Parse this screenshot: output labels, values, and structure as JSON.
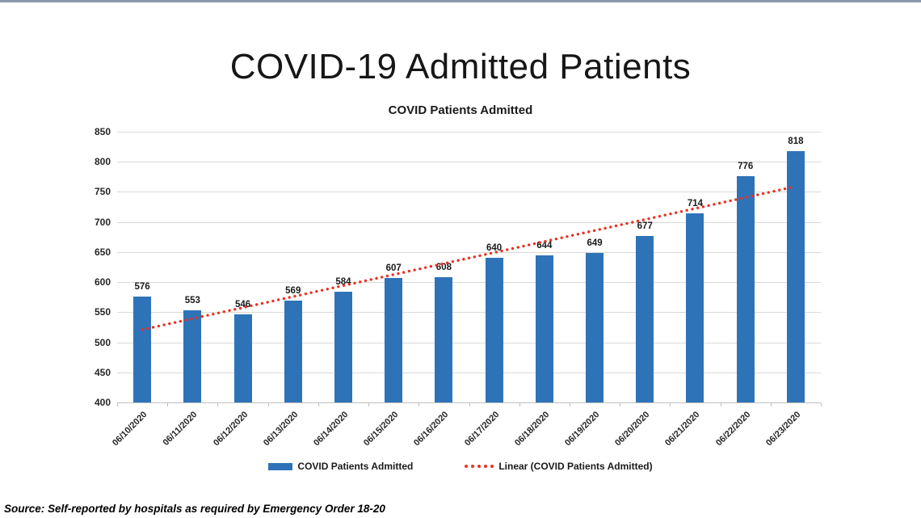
{
  "page": {
    "main_title": "COVID-19 Admitted Patients",
    "source_note": "Source: Self-reported by hospitals as required by Emergency Order 18-20"
  },
  "colors": {
    "top_strip": "#8C98AC",
    "bar": "#2E73B8",
    "trend": "#EA3223",
    "gridline": "#D9D9D9",
    "axis_line": "#BFBFBF"
  },
  "chart_data": {
    "type": "bar",
    "title": "COVID Patients Admitted",
    "categories": [
      "06/10/2020",
      "06/11/2020",
      "06/12/2020",
      "06/13/2020",
      "06/14/2020",
      "06/15/2020",
      "06/16/2020",
      "06/17/2020",
      "06/18/2020",
      "06/19/2020",
      "06/20/2020",
      "06/21/2020",
      "06/22/2020",
      "06/23/2020"
    ],
    "series": [
      {
        "name": "COVID Patients Admitted",
        "values": [
          576,
          553,
          546,
          569,
          584,
          607,
          608,
          640,
          644,
          649,
          677,
          714,
          776,
          818
        ]
      }
    ],
    "trendline": {
      "name": "Linear (COVID Patients Admitted)",
      "style": "dotted",
      "start_value": 521,
      "end_value": 759
    },
    "data_labels": true,
    "grid": true,
    "legend_position": "bottom",
    "xlabel": "",
    "ylabel": "",
    "ylim": [
      400,
      850
    ],
    "yticks": [
      400,
      450,
      500,
      550,
      600,
      650,
      700,
      750,
      800,
      850
    ]
  },
  "legend": {
    "items": [
      {
        "label": "COVID Patients Admitted",
        "swatch": "bar"
      },
      {
        "label": "Linear (COVID Patients Admitted)",
        "swatch": "dotted-line"
      }
    ]
  }
}
